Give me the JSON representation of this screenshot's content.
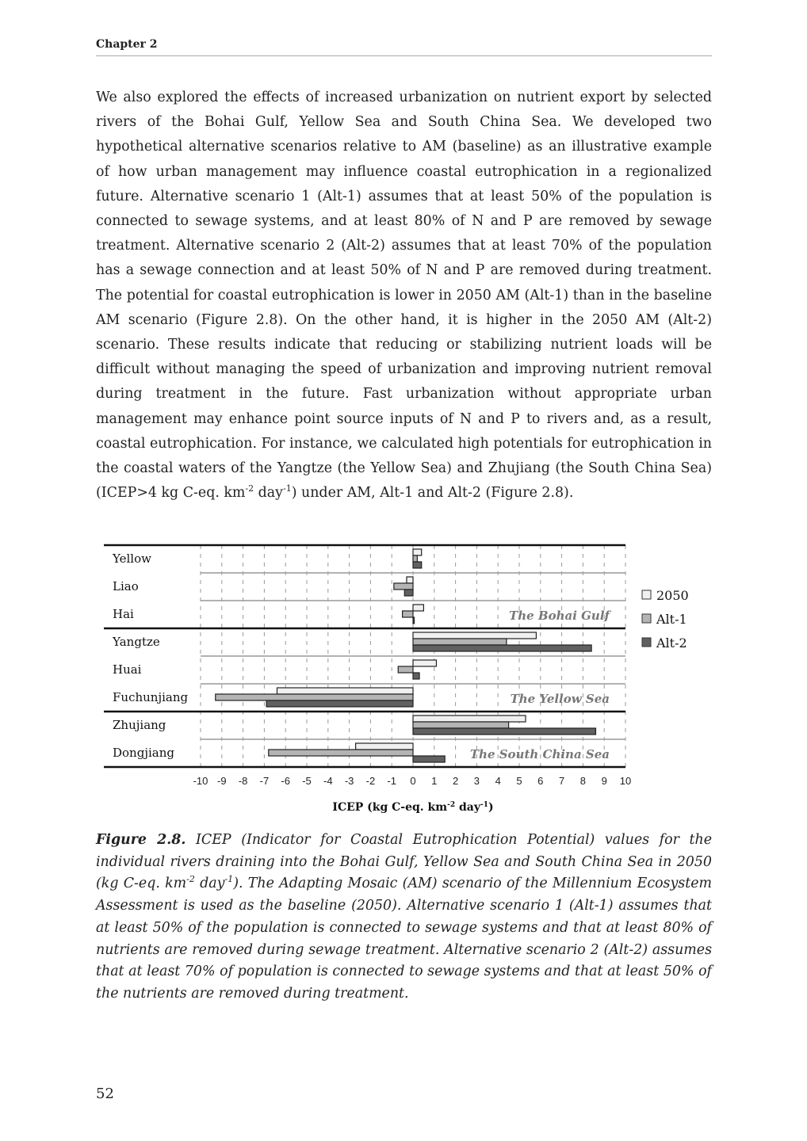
{
  "header": {
    "chapter": "Chapter 2"
  },
  "body": {
    "p1": "We also explored the effects of increased urbanization on nutrient export by selected rivers of the Bohai Gulf, Yellow Sea and South China Sea. We developed two hypothetical alternative scenarios relative to AM (baseline) as an illustrative example of how urban management may influence coastal eutrophication in a regionalized future. Alternative scenario 1 (Alt-1) assumes that at least 50% of the population is connected to sewage systems, and at least 80% of N and P are removed by sewage treatment. Alternative scenario 2 (Alt-2) assumes that at least 70% of the population has a sewage connection and at least 50% of N and P are removed during treatment. The potential for coastal eutrophication is lower in 2050 AM (Alt-1) than in the baseline AM scenario (Figure 2.8). On the other hand, it is higher in the 2050 AM (Alt-2) scenario. These results indicate that reducing or stabilizing nutrient loads will be difficult without managing the speed of urbanization and improving nutrient removal during treatment in the future. Fast urbanization without appropriate urban management may enhance point source inputs of N and P to rivers and, as a result, coastal eutrophication. For instance, we calculated high potentials for eutrophication in the coastal waters of the Yangtze (the Yellow Sea) and Zhujiang (the South China Sea) (ICEP>4 kg C-eq. km",
    "p1_sup1": "-2",
    "p1_mid": " day",
    "p1_sup2": "-1",
    "p1_end": ") under AM, Alt-1 and Alt-2 (Figure 2.8)."
  },
  "caption": {
    "label": "Figure 2.8.",
    "text1": " ICEP (Indicator for Coastal Eutrophication Potential) values for the individual rivers draining into the Bohai Gulf, Yellow Sea and South China Sea in 2050 (kg C-eq. km",
    "sup1": "-2",
    "text2": " day",
    "sup2": "-1",
    "text3": "). The Adapting Mosaic (AM) scenario of the Millennium Ecosystem Assessment is used as the baseline (2050). Alternative scenario 1 (Alt-1) assumes that at least 50% of the population is connected to sewage systems and that at least 80% of nutrients are removed during sewage treatment. Alternative scenario 2 (Alt-2) assumes that at least 70% of population is connected to sewage systems and that at least 50% of the nutrients are removed during treatment."
  },
  "page_number": "52",
  "chart_data": {
    "type": "bar",
    "orientation": "horizontal",
    "categories": [
      "Yellow",
      "Liao",
      "Hai",
      "Yangtze",
      "Huai",
      "Fuchunjiang",
      "Zhujiang",
      "Dongjiang"
    ],
    "groups": [
      {
        "label": "The Bohai Gulf",
        "categories": [
          "Yellow",
          "Liao",
          "Hai"
        ]
      },
      {
        "label": "The Yellow Sea",
        "categories": [
          "Yangtze",
          "Huai",
          "Fuchunjiang"
        ]
      },
      {
        "label": "The South China Sea",
        "categories": [
          "Zhujiang",
          "Dongjiang"
        ]
      }
    ],
    "series": [
      {
        "name": "2050",
        "color": "#f0f0f0",
        "values": [
          0.4,
          -0.3,
          0.5,
          5.8,
          1.1,
          -6.4,
          5.3,
          -2.7
        ]
      },
      {
        "name": "Alt-1",
        "color": "#b4b4b4",
        "values": [
          0.2,
          -0.9,
          -0.5,
          4.4,
          -0.7,
          -9.3,
          4.5,
          -6.8
        ]
      },
      {
        "name": "Alt-2",
        "color": "#606060",
        "values": [
          0.4,
          -0.4,
          0.05,
          8.4,
          0.3,
          -6.9,
          8.6,
          1.5
        ]
      }
    ],
    "xlabel": "ICEP (kg C-eq. km",
    "xlabel_sup1": "-2",
    "xlabel_mid": " day",
    "xlabel_sup2": "-1",
    "xlabel_end": ")",
    "xlim": [
      -10,
      10
    ],
    "xticks": [
      -10,
      -9,
      -8,
      -7,
      -6,
      -5,
      -4,
      -3,
      -2,
      -1,
      0,
      1,
      2,
      3,
      4,
      5,
      6,
      7,
      8,
      9,
      10
    ],
    "grid": "vertical dashed",
    "legend_position": "right"
  }
}
